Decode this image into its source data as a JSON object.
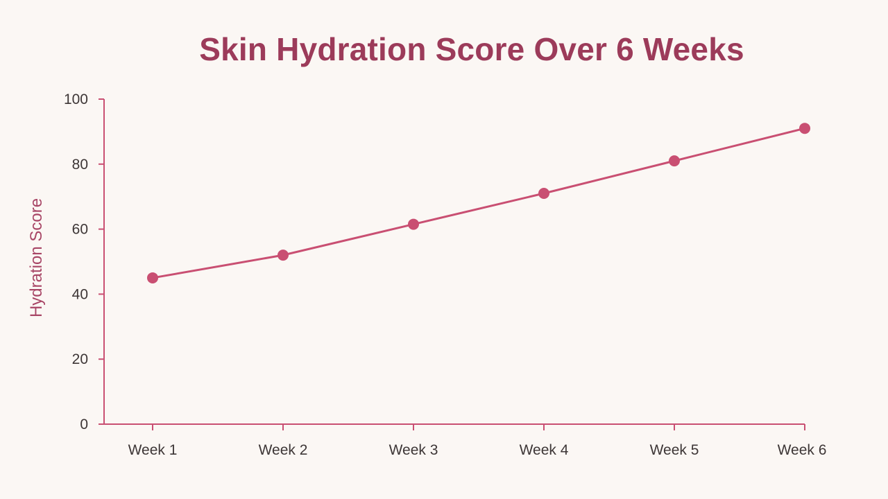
{
  "chart_data": {
    "type": "line",
    "title": "Skin Hydration Score Over 6 Weeks",
    "xlabel": "",
    "ylabel": "Hydration Score",
    "categories": [
      "Week 1",
      "Week 2",
      "Week 3",
      "Week 4",
      "Week 5",
      "Week 6"
    ],
    "series": [
      {
        "values": [
          45,
          52,
          61.5,
          71,
          81,
          91
        ]
      }
    ],
    "ylim": [
      0,
      100
    ],
    "yticks": [
      "0",
      "20",
      "40",
      "60",
      "80",
      "100"
    ],
    "grid": false,
    "legend": "none",
    "colors": {
      "line": "#c94f72",
      "axis": "#c94f72",
      "title": "#9c3b5a",
      "ylabel": "#a84666",
      "background": "#fbf7f4"
    }
  }
}
